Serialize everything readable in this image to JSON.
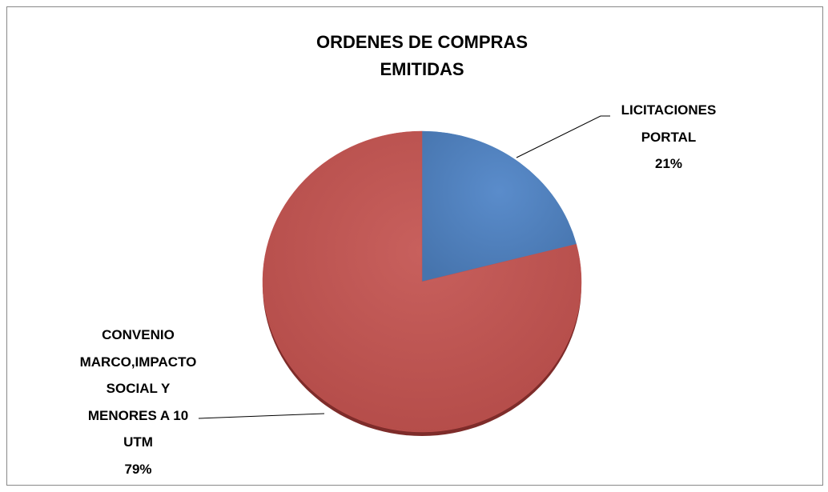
{
  "chart_data": {
    "type": "pie",
    "title": "ORDENES DE COMPRAS EMITIDAS",
    "categories": [
      "LICITACIONES PORTAL",
      "CONVENIO MARCO,IMPACTO SOCIAL Y MENORES A 10 UTM"
    ],
    "values": [
      21,
      79
    ],
    "value_labels": [
      "21%",
      "79%"
    ],
    "colors": [
      "#4f81bd",
      "#c0504d"
    ]
  }
}
